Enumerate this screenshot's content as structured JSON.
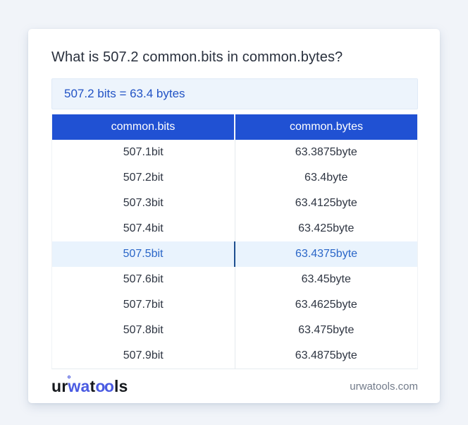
{
  "title": "What is 507.2 common.bits in common.bytes?",
  "result": {
    "text": "507.2 bits = 63.4 bytes"
  },
  "table": {
    "headers": [
      "common.bits",
      "common.bytes"
    ],
    "rows": [
      {
        "bits": "507.1bit",
        "bytes": "63.3875byte",
        "highlighted": false
      },
      {
        "bits": "507.2bit",
        "bytes": "63.4byte",
        "highlighted": false
      },
      {
        "bits": "507.3bit",
        "bytes": "63.4125byte",
        "highlighted": false
      },
      {
        "bits": "507.4bit",
        "bytes": "63.425byte",
        "highlighted": false
      },
      {
        "bits": "507.5bit",
        "bytes": "63.4375byte",
        "highlighted": true
      },
      {
        "bits": "507.6bit",
        "bytes": "63.45byte",
        "highlighted": false
      },
      {
        "bits": "507.7bit",
        "bytes": "63.4625byte",
        "highlighted": false
      },
      {
        "bits": "507.8bit",
        "bytes": "63.475byte",
        "highlighted": false
      },
      {
        "bits": "507.9bit",
        "bytes": "63.4875byte",
        "highlighted": false
      }
    ]
  },
  "footer": {
    "logo": {
      "seg1": "ur",
      "seg2": "wa",
      "seg3": "t",
      "seg4": "oo",
      "seg5": "ls"
    },
    "site": "urwatools.com"
  },
  "colors": {
    "page_background": "#f1f4f9",
    "card_background": "#ffffff",
    "header_blue": "#2051d3",
    "result_box_background": "#edf4fc",
    "result_text_blue": "#2253c5",
    "highlight_row_background": "#e9f3fd",
    "highlight_text_blue": "#2a66c8",
    "highlight_divider_blue": "#1d4e8f",
    "row_text": "#2e3542",
    "logo_blue": "#4a5be2",
    "site_text_gray": "#727b8a"
  }
}
